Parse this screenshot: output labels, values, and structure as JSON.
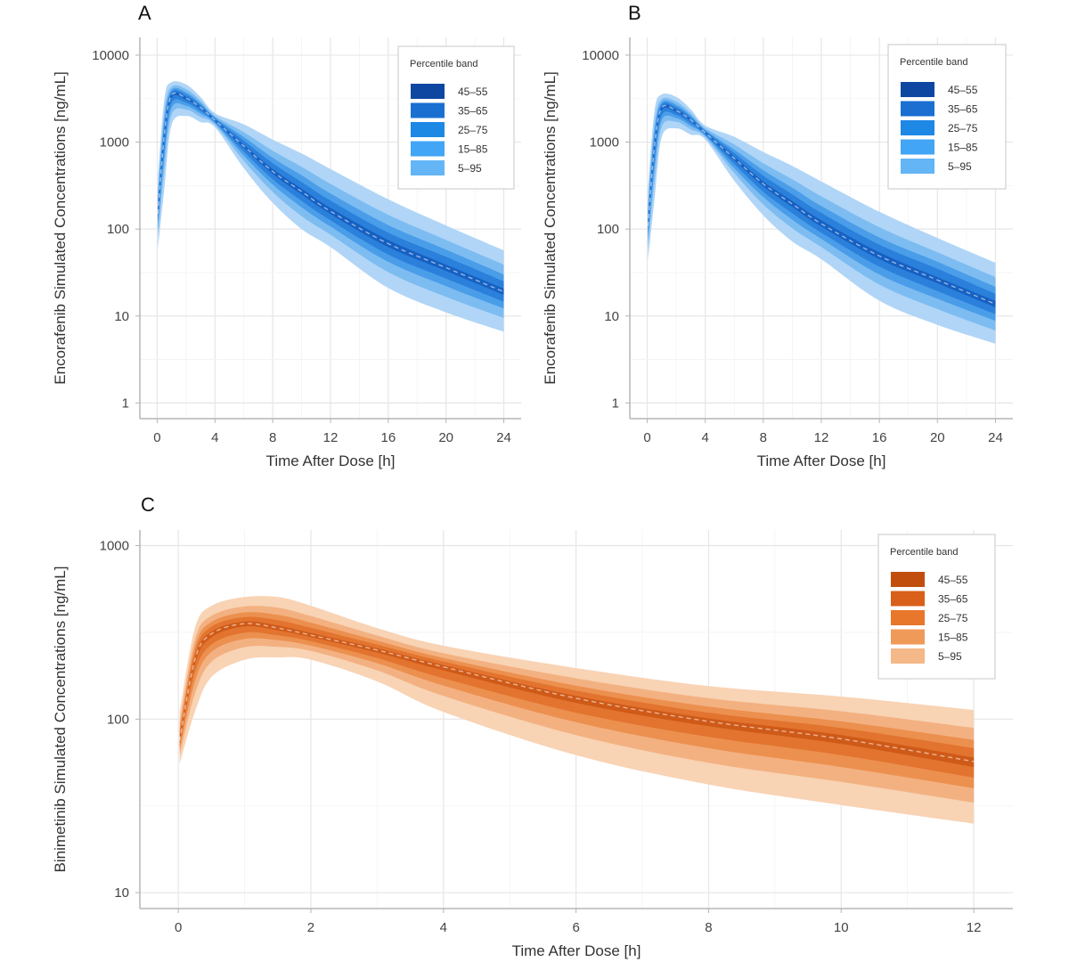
{
  "chart_data": [
    {
      "panel": "A",
      "type": "area",
      "xlabel": "Time After Dose [h]",
      "ylabel": "Encorafenib Simulated Concentrations [ng/mL]",
      "xlim": [
        -1.2,
        25.2
      ],
      "ylim": [
        0.66,
        16000
      ],
      "yscale": "log",
      "xticks": [
        0,
        4,
        8,
        12,
        16,
        20,
        24
      ],
      "yticks": [
        1,
        10,
        100,
        1000,
        10000
      ],
      "grid": true,
      "legend": {
        "title": "Percentile band",
        "position": "top-right"
      },
      "x": [
        0.05,
        0.5,
        1,
        2,
        3,
        4,
        6,
        8,
        10,
        12,
        16,
        20,
        24
      ],
      "median": [
        150,
        1250,
        3450,
        3200,
        2500,
        1780,
        900,
        460,
        270,
        160,
        68,
        36,
        19
      ],
      "bands": [
        {
          "label": "5–95",
          "color": "#64b5f6",
          "fill": "#b0d5f7",
          "lower": [
            60,
            300,
            1580,
            2000,
            1700,
            1480,
            500,
            200,
            100,
            62,
            21,
            11,
            6.6
          ],
          "upper": [
            400,
            3200,
            4900,
            4600,
            3300,
            2150,
            1600,
            1070,
            740,
            490,
            220,
            110,
            57
          ]
        },
        {
          "label": "15–85",
          "color": "#42a5f5",
          "fill": "#7dbcf1",
          "lower": [
            85,
            490,
            2070,
            2370,
            1950,
            1580,
            610,
            267,
            141,
            86,
            32,
            16.6,
            9.5
          ],
          "upper": [
            280,
            2300,
            4330,
            4060,
            3000,
            2010,
            1300,
            795,
            520,
            331,
            146,
            75,
            39
          ]
        },
        {
          "label": "25–75",
          "color": "#1e88e5",
          "fill": "#4a9de8",
          "lower": [
            100,
            690,
            2480,
            2620,
            2130,
            1650,
            700,
            324,
            178,
            107,
            42,
            22,
            12.2
          ],
          "upper": [
            225,
            1850,
            4000,
            3740,
            2800,
            1920,
            1145,
            660,
            415,
            256,
            111,
            58,
            30
          ]
        },
        {
          "label": "35–65",
          "color": "#1a6fd1",
          "fill": "#2a80da",
          "lower": [
            120,
            875,
            2830,
            2850,
            2270,
            1700,
            775,
            373,
            211,
            126,
            51,
            27,
            14.6
          ],
          "upper": [
            190,
            1580,
            3760,
            3520,
            2680,
            1870,
            1040,
            570,
            347,
            212,
            91,
            48,
            25
          ]
        },
        {
          "label": "45–55",
          "color": "#0d47a1",
          "fill": "#1660c2",
          "lower": [
            140,
            1110,
            3240,
            3080,
            2430,
            1750,
            860,
            430,
            250,
            149,
            62,
            33,
            17.5
          ],
          "upper": [
            160,
            1350,
            3550,
            3300,
            2550,
            1810,
            940,
            490,
            292,
            175,
            75,
            39,
            20.7
          ]
        }
      ]
    },
    {
      "panel": "B",
      "type": "area",
      "xlabel": "Time After Dose [h]",
      "ylabel": "Encorafenib Simulated Concentrations [ng/mL]",
      "xlim": [
        -1.2,
        25.2
      ],
      "ylim": [
        0.66,
        16000
      ],
      "yscale": "log",
      "xticks": [
        0,
        4,
        8,
        12,
        16,
        20,
        24
      ],
      "yticks": [
        1,
        10,
        100,
        1000,
        10000
      ],
      "grid": true,
      "legend": {
        "title": "Percentile band",
        "position": "top-right"
      },
      "x": [
        0.05,
        0.5,
        1,
        2,
        3,
        4,
        6,
        8,
        10,
        12,
        16,
        20,
        24
      ],
      "median": [
        108,
        900,
        2480,
        2300,
        1800,
        1280,
        650,
        331,
        194,
        115,
        49,
        26,
        13.7
      ],
      "bands": [
        {
          "label": "5–95",
          "color": "#64b5f6",
          "fill": "#b0d5f7",
          "lower": [
            43,
            216,
            1140,
            1440,
            1220,
            1070,
            360,
            144,
            72,
            45,
            15,
            7.9,
            4.8
          ],
          "upper": [
            290,
            2300,
            3530,
            3310,
            2380,
            1550,
            1150,
            770,
            533,
            353,
            158,
            79,
            41
          ]
        },
        {
          "label": "15–85",
          "color": "#42a5f5",
          "fill": "#7dbcf1",
          "lower": [
            61,
            350,
            1490,
            1710,
            1400,
            1140,
            440,
            192,
            102,
            62,
            23,
            12,
            6.8
          ],
          "upper": [
            200,
            1660,
            3120,
            2920,
            2160,
            1450,
            940,
            572,
            374,
            238,
            105,
            54,
            28
          ]
        },
        {
          "label": "25–75",
          "color": "#1e88e5",
          "fill": "#4a9de8",
          "lower": [
            72,
            500,
            1790,
            1890,
            1530,
            1190,
            500,
            233,
            128,
            77,
            30,
            15.8,
            8.8
          ],
          "upper": [
            162,
            1330,
            2880,
            2690,
            2020,
            1380,
            820,
            475,
            299,
            184,
            80,
            42,
            21.6
          ]
        },
        {
          "label": "35–65",
          "color": "#1a6fd1",
          "fill": "#2a80da",
          "lower": [
            86,
            630,
            2040,
            2050,
            1630,
            1220,
            560,
            269,
            152,
            91,
            37,
            19.4,
            10.5
          ],
          "upper": [
            137,
            1140,
            2710,
            2530,
            1930,
            1350,
            750,
            410,
            250,
            153,
            66,
            35,
            18
          ]
        },
        {
          "label": "45–55",
          "color": "#0d47a1",
          "fill": "#1660c2",
          "lower": [
            100,
            800,
            2330,
            2220,
            1750,
            1260,
            620,
            310,
            180,
            107,
            45,
            23.8,
            12.6
          ],
          "upper": [
            115,
            970,
            2560,
            2380,
            1840,
            1300,
            680,
            353,
            210,
            126,
            54,
            28,
            14.9
          ]
        }
      ]
    },
    {
      "panel": "C",
      "type": "area",
      "xlabel": "Time After Dose [h]",
      "ylabel": "Binimetinib Simulated Concentrations [ng/mL]",
      "xlim": [
        -0.58,
        12.59
      ],
      "ylim": [
        8.1,
        1230
      ],
      "yscale": "log",
      "xticks": [
        0,
        2,
        4,
        6,
        8,
        10,
        12
      ],
      "yticks": [
        10,
        100,
        1000
      ],
      "grid": true,
      "legend": {
        "title": "Percentile band",
        "position": "top-right"
      },
      "x": [
        0.02,
        0.25,
        0.5,
        1,
        1.5,
        2,
        3,
        4,
        6,
        8,
        10,
        12
      ],
      "median": [
        75,
        220,
        310,
        355,
        335,
        305,
        250,
        200,
        132,
        97,
        77,
        57
      ],
      "bands": [
        {
          "label": "5–95",
          "color": "#f5b888",
          "fill": "#f8d3b4",
          "lower": [
            55,
            110,
            175,
            220,
            227,
            220,
            165,
            110,
            62,
            42,
            32,
            25
          ],
          "upper": [
            110,
            335,
            450,
            505,
            505,
            450,
            335,
            265,
            197,
            155,
            135,
            113
          ]
        },
        {
          "label": "15–85",
          "color": "#f09a5a",
          "fill": "#f3b181",
          "lower": [
            61,
            140,
            214,
            260,
            261,
            247,
            191,
            136,
            81,
            56,
            43.5,
            33
          ],
          "upper": [
            96,
            288,
            394,
            446,
            439,
            393,
            303,
            240,
            172,
            132,
            111,
            89
          ]
        },
        {
          "label": "25–75",
          "color": "#e8762b",
          "fill": "#ec904f",
          "lower": [
            66,
            164,
            244,
            290,
            285,
            265,
            210,
            156,
            96,
            68,
            53,
            40
          ],
          "upper": [
            88,
            262,
            363,
            412,
            399,
            360,
            283,
            225,
            156,
            118,
            97,
            76
          ]
        },
        {
          "label": "35–65",
          "color": "#d9601a",
          "fill": "#e2742f",
          "lower": [
            69,
            185,
            269,
            315,
            304,
            281,
            225,
            172,
            109,
            79,
            62,
            46
          ],
          "upper": [
            83,
            244,
            341,
            387,
            372,
            336,
            269,
            215,
            146,
            109,
            89,
            68
          ]
        },
        {
          "label": "45–55",
          "color": "#c24e0e",
          "fill": "#cf5a18",
          "lower": [
            73,
            208,
            296,
            342,
            325,
            297,
            242,
            191,
            124,
            91,
            72,
            53
          ],
          "upper": [
            77,
            227,
            319,
            365,
            346,
            314,
            256,
            205,
            136,
            101,
            81,
            60
          ]
        }
      ]
    }
  ]
}
